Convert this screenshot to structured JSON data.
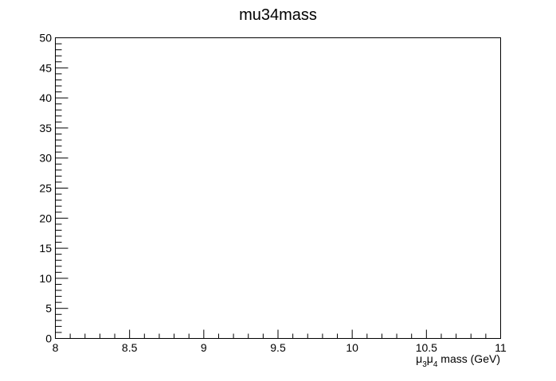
{
  "chart_data": {
    "type": "bar",
    "title": "mu34mass",
    "xlabel": {
      "mu": "μ",
      "sub1": "3",
      "sub2": "4",
      "rest": " mass (GeV)"
    },
    "ylabel": "",
    "xlim": [
      8,
      11
    ],
    "ylim": [
      0,
      50
    ],
    "x_ticks": [
      {
        "value": 8,
        "label": "8"
      },
      {
        "value": 8.5,
        "label": "8.5"
      },
      {
        "value": 9,
        "label": "9"
      },
      {
        "value": 9.5,
        "label": "9.5"
      },
      {
        "value": 10,
        "label": "10"
      },
      {
        "value": 10.5,
        "label": "10.5"
      },
      {
        "value": 11,
        "label": "11"
      }
    ],
    "y_ticks": [
      {
        "value": 0,
        "label": "0"
      },
      {
        "value": 5,
        "label": "5"
      },
      {
        "value": 10,
        "label": "10"
      },
      {
        "value": 15,
        "label": "15"
      },
      {
        "value": 20,
        "label": "20"
      },
      {
        "value": 25,
        "label": "25"
      },
      {
        "value": 30,
        "label": "30"
      },
      {
        "value": 35,
        "label": "35"
      },
      {
        "value": 40,
        "label": "40"
      },
      {
        "value": 45,
        "label": "45"
      },
      {
        "value": 50,
        "label": "50"
      }
    ],
    "x_minor_step": 0.1,
    "y_minor_step": 1,
    "series": [],
    "grid": false,
    "legend": "none"
  }
}
